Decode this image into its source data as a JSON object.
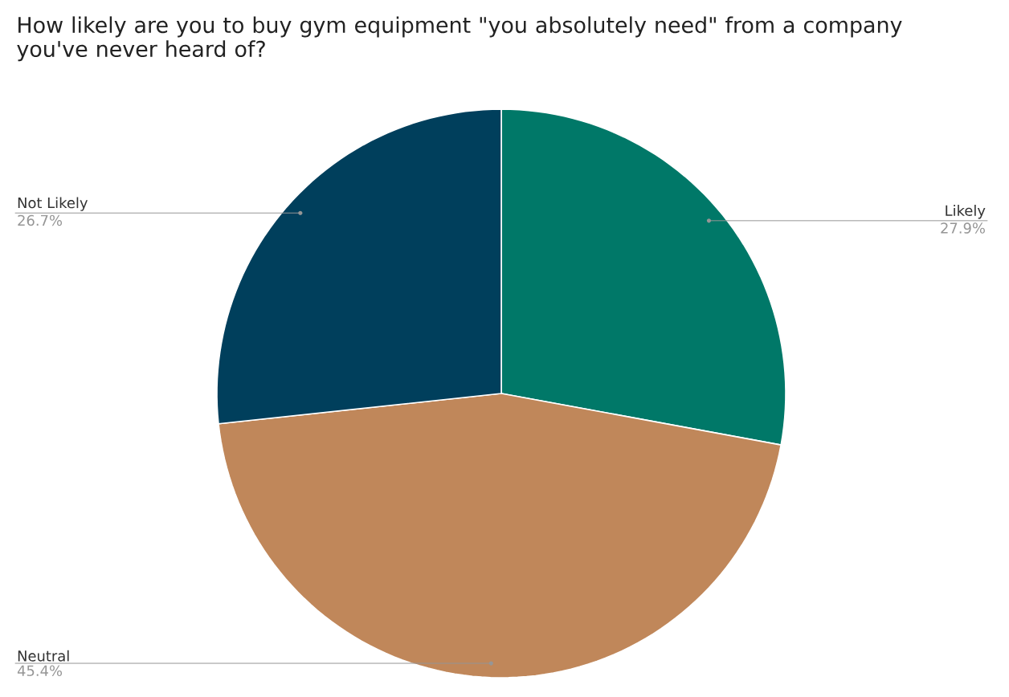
{
  "chart_data": {
    "type": "pie",
    "title": "How likely are you to buy gym equipment \"you absolutely need\" from a company you've never heard of?",
    "categories": [
      "Likely",
      "Neutral",
      "Not Likely"
    ],
    "values": [
      27.9,
      45.4,
      26.7
    ],
    "value_labels": [
      "27.9%",
      "45.4%",
      "26.7%"
    ],
    "colors": [
      "#007868",
      "#c0875a",
      "#003f5c"
    ]
  }
}
